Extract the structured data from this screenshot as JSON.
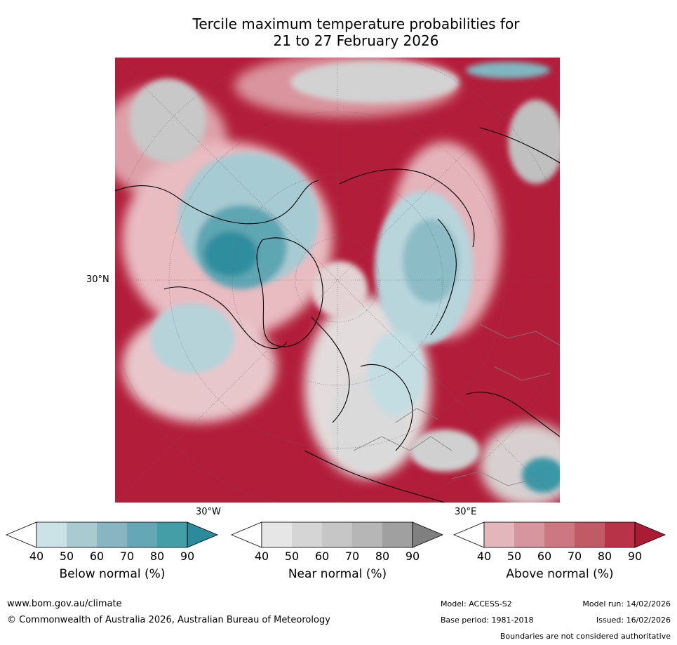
{
  "title_line1": "Tercile maximum temperature probabilities for",
  "title_line2": "21 to 27 February 2026",
  "labels": {
    "lat_30n": "30°N",
    "lon_30w": "30°W",
    "lon_30e": "30°E"
  },
  "legend": {
    "below": {
      "title": "Below normal (%)",
      "ticks": [
        "40",
        "50",
        "60",
        "70",
        "80",
        "90"
      ],
      "colors": [
        "#ffffff",
        "#cbe2e7",
        "#a9cad1",
        "#88b5c1",
        "#65a7b5",
        "#449ea8",
        "#2b8a9b"
      ]
    },
    "near": {
      "title": "Near normal (%)",
      "ticks": [
        "40",
        "50",
        "60",
        "70",
        "80",
        "90"
      ],
      "colors": [
        "#ffffff",
        "#e6e6e6",
        "#d5d5d5",
        "#c6c6c6",
        "#b6b6b6",
        "#a0a0a0",
        "#808080"
      ]
    },
    "above": {
      "title": "Above normal (%)",
      "ticks": [
        "40",
        "50",
        "60",
        "70",
        "80",
        "90"
      ],
      "colors": [
        "#ffffff",
        "#e2b6bb",
        "#d7969f",
        "#cc7781",
        "#c25a66",
        "#b83348",
        "#aa1b34"
      ]
    }
  },
  "footer": {
    "website": "www.bom.gov.au/climate",
    "copyright": "© Commonwealth of Australia 2026, Australian Bureau of Meteorology",
    "model": "Model: ACCESS-S2",
    "base_period": "Base period: 1981-2018",
    "model_run": "Model run: 14/02/2026",
    "issued": "Issued: 16/02/2026",
    "disclaimer": "Boundaries are not considered authoritative"
  }
}
